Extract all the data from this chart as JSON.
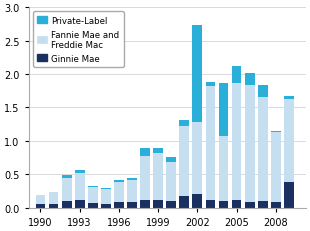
{
  "years": [
    1990,
    1991,
    1992,
    1993,
    1994,
    1995,
    1996,
    1997,
    1998,
    1999,
    2000,
    2001,
    2002,
    2003,
    2004,
    2005,
    2006,
    2007,
    2008,
    2009
  ],
  "ginnie_mae": [
    0.05,
    0.05,
    0.1,
    0.12,
    0.07,
    0.06,
    0.09,
    0.08,
    0.12,
    0.12,
    0.1,
    0.17,
    0.2,
    0.12,
    0.1,
    0.12,
    0.08,
    0.1,
    0.08,
    0.38
  ],
  "fannie_freddie": [
    0.14,
    0.19,
    0.35,
    0.4,
    0.24,
    0.22,
    0.3,
    0.33,
    0.65,
    0.7,
    0.58,
    1.05,
    1.08,
    1.7,
    0.97,
    1.75,
    1.75,
    1.55,
    1.05,
    1.25
  ],
  "private_label": [
    0.0,
    0.0,
    0.04,
    0.04,
    0.01,
    0.01,
    0.03,
    0.04,
    0.12,
    0.07,
    0.08,
    0.1,
    1.45,
    0.06,
    0.8,
    0.25,
    0.18,
    0.18,
    0.02,
    0.04
  ],
  "color_ginnie": "#1a3060",
  "color_fannie": "#c5dff0",
  "color_private": "#2ab0d8",
  "ylim": [
    0,
    3.0
  ],
  "yticks": [
    0,
    0.5,
    1.0,
    1.5,
    2.0,
    2.5,
    3.0
  ],
  "xtick_years": [
    1990,
    1993,
    1996,
    1999,
    2002,
    2005,
    2008
  ],
  "background_color": "#ffffff",
  "bar_width": 0.75
}
